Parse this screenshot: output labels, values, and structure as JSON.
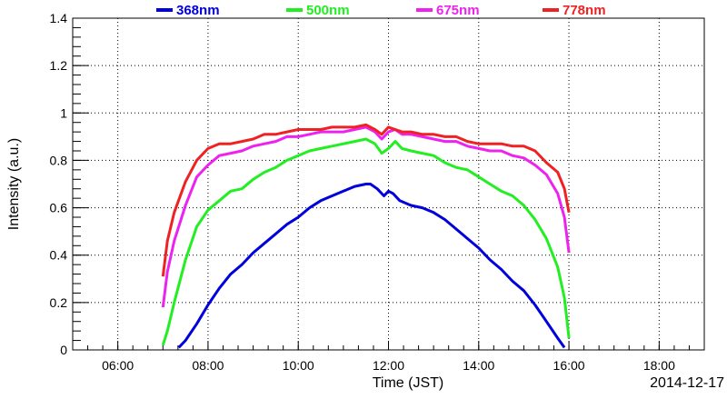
{
  "chart_data": {
    "type": "line",
    "title": "",
    "xlabel": "Time (JST)",
    "ylabel": "Intensity (a.u.)",
    "date_label": "2014-12-17",
    "x_units": "hours (JST)",
    "xlim": [
      5.0,
      19.0
    ],
    "ylim": [
      0,
      1.4
    ],
    "x_ticks": [
      {
        "value": 6,
        "label": "06:00"
      },
      {
        "value": 8,
        "label": "08:00"
      },
      {
        "value": 10,
        "label": "10:00"
      },
      {
        "value": 12,
        "label": "12:00"
      },
      {
        "value": 14,
        "label": "14:00"
      },
      {
        "value": 16,
        "label": "16:00"
      },
      {
        "value": 18,
        "label": "18:00"
      }
    ],
    "y_ticks": [
      {
        "value": 0,
        "label": "0"
      },
      {
        "value": 0.2,
        "label": "0.2"
      },
      {
        "value": 0.4,
        "label": "0.4"
      },
      {
        "value": 0.6,
        "label": "0.6"
      },
      {
        "value": 0.8,
        "label": "0.8"
      },
      {
        "value": 1.0,
        "label": "1"
      },
      {
        "value": 1.2,
        "label": "1.2"
      },
      {
        "value": 1.4,
        "label": "1.4"
      }
    ],
    "grid": true,
    "legend_position": "top",
    "series": [
      {
        "name": "368nm",
        "color": "#0000dd",
        "x": [
          7.35,
          7.5,
          7.75,
          8.0,
          8.25,
          8.5,
          8.75,
          9.0,
          9.25,
          9.5,
          9.75,
          10.0,
          10.25,
          10.5,
          10.75,
          11.0,
          11.25,
          11.5,
          11.6,
          11.75,
          11.9,
          12.0,
          12.1,
          12.25,
          12.5,
          12.75,
          13.0,
          13.25,
          13.5,
          13.75,
          14.0,
          14.25,
          14.5,
          14.75,
          15.0,
          15.25,
          15.5,
          15.75,
          15.9
        ],
        "y": [
          0.01,
          0.04,
          0.11,
          0.19,
          0.26,
          0.32,
          0.36,
          0.41,
          0.45,
          0.49,
          0.53,
          0.56,
          0.6,
          0.63,
          0.65,
          0.67,
          0.69,
          0.7,
          0.7,
          0.68,
          0.65,
          0.67,
          0.66,
          0.63,
          0.61,
          0.6,
          0.58,
          0.55,
          0.51,
          0.47,
          0.43,
          0.38,
          0.34,
          0.29,
          0.25,
          0.19,
          0.12,
          0.05,
          0.01
        ]
      },
      {
        "name": "500nm",
        "color": "#22ee22",
        "x": [
          7.0,
          7.1,
          7.25,
          7.5,
          7.75,
          8.0,
          8.25,
          8.5,
          8.75,
          9.0,
          9.25,
          9.5,
          9.75,
          10.0,
          10.25,
          10.5,
          10.75,
          11.0,
          11.25,
          11.5,
          11.7,
          11.85,
          12.0,
          12.15,
          12.3,
          12.5,
          12.75,
          13.0,
          13.25,
          13.5,
          13.75,
          14.0,
          14.25,
          14.5,
          14.75,
          15.0,
          15.25,
          15.5,
          15.75,
          15.9,
          16.0
        ],
        "y": [
          0.02,
          0.08,
          0.2,
          0.38,
          0.52,
          0.59,
          0.63,
          0.67,
          0.68,
          0.72,
          0.75,
          0.77,
          0.8,
          0.82,
          0.84,
          0.85,
          0.86,
          0.87,
          0.88,
          0.89,
          0.87,
          0.83,
          0.85,
          0.88,
          0.85,
          0.84,
          0.83,
          0.82,
          0.79,
          0.77,
          0.76,
          0.73,
          0.7,
          0.67,
          0.65,
          0.61,
          0.55,
          0.47,
          0.35,
          0.22,
          0.05
        ]
      },
      {
        "name": "675nm",
        "color": "#ee22ee",
        "x": [
          7.0,
          7.1,
          7.25,
          7.5,
          7.75,
          8.0,
          8.25,
          8.5,
          8.75,
          9.0,
          9.25,
          9.5,
          9.75,
          10.0,
          10.25,
          10.5,
          10.75,
          11.0,
          11.25,
          11.5,
          11.7,
          11.85,
          12.0,
          12.15,
          12.3,
          12.5,
          12.75,
          13.0,
          13.25,
          13.5,
          13.75,
          14.0,
          14.25,
          14.5,
          14.75,
          15.0,
          15.25,
          15.5,
          15.75,
          15.9,
          16.0
        ],
        "y": [
          0.18,
          0.33,
          0.46,
          0.61,
          0.73,
          0.78,
          0.82,
          0.83,
          0.84,
          0.86,
          0.87,
          0.88,
          0.9,
          0.9,
          0.91,
          0.92,
          0.92,
          0.92,
          0.93,
          0.94,
          0.92,
          0.89,
          0.92,
          0.93,
          0.91,
          0.91,
          0.9,
          0.89,
          0.88,
          0.88,
          0.86,
          0.85,
          0.84,
          0.84,
          0.82,
          0.81,
          0.78,
          0.74,
          0.66,
          0.56,
          0.41
        ]
      },
      {
        "name": "778nm",
        "color": "#ee2222",
        "x": [
          7.0,
          7.1,
          7.25,
          7.5,
          7.75,
          8.0,
          8.25,
          8.5,
          8.75,
          9.0,
          9.25,
          9.5,
          9.75,
          10.0,
          10.25,
          10.5,
          10.75,
          11.0,
          11.25,
          11.5,
          11.7,
          11.85,
          12.0,
          12.15,
          12.3,
          12.5,
          12.75,
          13.0,
          13.25,
          13.5,
          13.75,
          14.0,
          14.25,
          14.5,
          14.75,
          15.0,
          15.25,
          15.5,
          15.75,
          15.9,
          16.0
        ],
        "y": [
          0.31,
          0.46,
          0.58,
          0.71,
          0.8,
          0.85,
          0.87,
          0.87,
          0.88,
          0.89,
          0.91,
          0.91,
          0.92,
          0.93,
          0.93,
          0.93,
          0.94,
          0.94,
          0.94,
          0.95,
          0.93,
          0.91,
          0.94,
          0.93,
          0.92,
          0.92,
          0.91,
          0.91,
          0.9,
          0.9,
          0.88,
          0.87,
          0.87,
          0.87,
          0.86,
          0.86,
          0.84,
          0.79,
          0.75,
          0.68,
          0.58
        ]
      }
    ]
  }
}
